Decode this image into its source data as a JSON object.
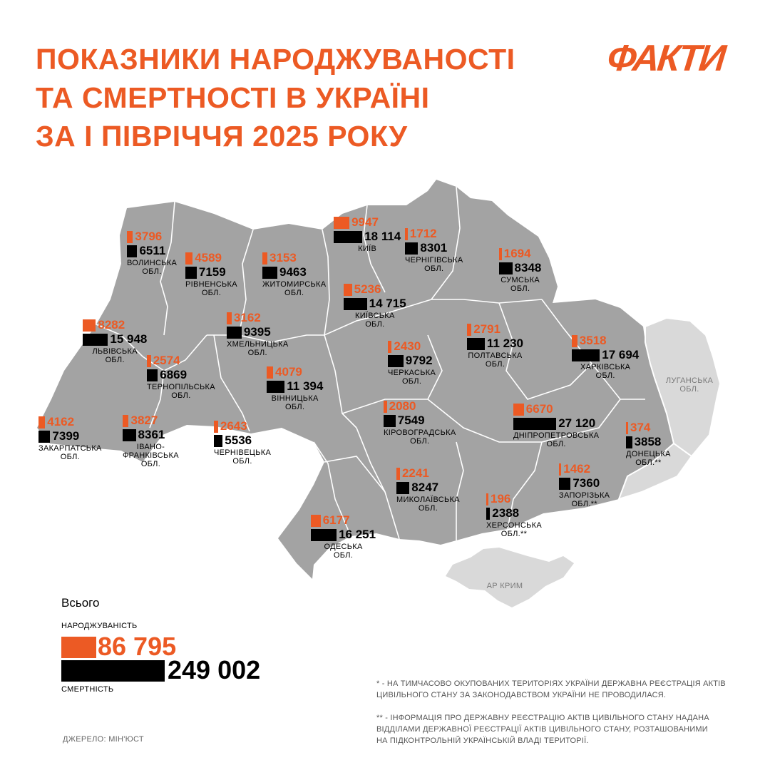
{
  "title": {
    "lines": [
      "ПОКАЗНИКИ НАРОДЖУВАНОСТІ",
      "ТА СМЕРТНОСТІ В УКРАЇНІ",
      "ЗА І ПІВРІЧЧЯ 2025 РОКУ"
    ]
  },
  "brand": {
    "logo_text": "ФАКТИ"
  },
  "colors": {
    "accent": "#ec5a24",
    "map_land": "#a3a3a3",
    "map_occupied": "#d9d9d9",
    "map_border": "#ffffff"
  },
  "map": {
    "occupied_labels": {
      "luhansk": [
        "ЛУГАНСЬКА",
        "ОБЛ."
      ],
      "crimea": [
        "АР КРИМ"
      ]
    }
  },
  "regions": [
    {
      "id": "volynska",
      "label": [
        "ВОЛИНСЬКА",
        "ОБЛ."
      ],
      "births": "3796",
      "deaths": "6511"
    },
    {
      "id": "rivnenska",
      "label": [
        "РІВНЕНСЬКА",
        "ОБЛ."
      ],
      "births": "4589",
      "deaths": "7159"
    },
    {
      "id": "zhytomyrska",
      "label": [
        "ЖИТОМИРСЬКА",
        "ОБЛ."
      ],
      "births": "3153",
      "deaths": "9463"
    },
    {
      "id": "kyiv",
      "label": [
        "КИЇВ"
      ],
      "births": "9947",
      "deaths": "18 114"
    },
    {
      "id": "chernihivska",
      "label": [
        "ЧЕРНІГІВСЬКА",
        "ОБЛ."
      ],
      "births": "1712",
      "deaths": "8301"
    },
    {
      "id": "sumska",
      "label": [
        "СУМСЬКА",
        "ОБЛ."
      ],
      "births": "1694",
      "deaths": "8348"
    },
    {
      "id": "kyivska",
      "label": [
        "КИЇВСЬКА",
        "ОБЛ."
      ],
      "births": "5236",
      "deaths": "14 715"
    },
    {
      "id": "lvivska",
      "label": [
        "ЛЬВІВСЬКА",
        "ОБЛ."
      ],
      "births": "8282",
      "deaths": "15 948"
    },
    {
      "id": "khmelnytska",
      "label": [
        "ХМЕЛЬНИЦЬКА",
        "ОБЛ."
      ],
      "births": "3162",
      "deaths": "9395"
    },
    {
      "id": "poltavska",
      "label": [
        "ПОЛТАВСЬКА",
        "ОБЛ."
      ],
      "births": "2791",
      "deaths": "11 230"
    },
    {
      "id": "kharkivska",
      "label": [
        "ХАРКІВСЬКА",
        "ОБЛ."
      ],
      "births": "3518",
      "deaths": "17 694"
    },
    {
      "id": "cherkaska",
      "label": [
        "ЧЕРКАСЬКА",
        "ОБЛ."
      ],
      "births": "2430",
      "deaths": "9792"
    },
    {
      "id": "ternopilska",
      "label": [
        "ТЕРНОПІЛЬСЬКА",
        "ОБЛ."
      ],
      "births": "2574",
      "deaths": "6869"
    },
    {
      "id": "vinnytska",
      "label": [
        "ВІННИЦЬКА",
        "ОБЛ."
      ],
      "births": "4079",
      "deaths": "11 394"
    },
    {
      "id": "kirovohradska",
      "label": [
        "КІРОВОГРАДСЬКА",
        "ОБЛ."
      ],
      "births": "2080",
      "deaths": "7549"
    },
    {
      "id": "dnipropetrovska",
      "label": [
        "ДНІПРОПЕТРОВСЬКА",
        "ОБЛ."
      ],
      "births": "6670",
      "deaths": "27 120"
    },
    {
      "id": "zakarpatska",
      "label": [
        "ЗАКАРПАТСЬКА",
        "ОБЛ."
      ],
      "births": "4162",
      "deaths": "7399"
    },
    {
      "id": "ivano-frankivska",
      "label": [
        "ІВАНО-",
        "ФРАНКІВСЬКА",
        "ОБЛ."
      ],
      "births": "3827",
      "deaths": "8361"
    },
    {
      "id": "chernivetska",
      "label": [
        "ЧЕРНІВЕЦЬКА",
        "ОБЛ."
      ],
      "births": "2643",
      "deaths": "5536"
    },
    {
      "id": "donetska",
      "label": [
        "ДОНЕЦЬКА",
        "ОБЛ.**"
      ],
      "births": "374",
      "deaths": "3858"
    },
    {
      "id": "mykolaivska",
      "label": [
        "МИКОЛАЇВСЬКА",
        "ОБЛ."
      ],
      "births": "2241",
      "deaths": "8247"
    },
    {
      "id": "zaporizka",
      "label": [
        "ЗАПОРІЗЬКА",
        "ОБЛ.**"
      ],
      "births": "1462",
      "deaths": "7360"
    },
    {
      "id": "khersonska",
      "label": [
        "ХЕРСОНСЬКА",
        "ОБЛ.**"
      ],
      "births": "196",
      "deaths": "2388"
    },
    {
      "id": "odeska",
      "label": [
        "ОДЕСЬКА",
        "ОБЛ."
      ],
      "births": "6177",
      "deaths": "16 251"
    }
  ],
  "totals": {
    "heading": "Всього",
    "births_label": "НАРОДЖУВАНІСТЬ",
    "births": "86 795",
    "deaths_label": "СМЕРТНІСТЬ",
    "deaths": "249 002"
  },
  "notes": {
    "note1": [
      "* - НА ТИМЧАСОВО ОКУПОВАНИХ ТЕРИТОРІЯХ УКРАЇНИ ДЕРЖАВНА РЕЄСТРАЦІЯ АКТІВ",
      "ЦИВІЛЬНОГО СТАНУ ЗА ЗАКОНОДАВСТВОМ УКРАЇНИ НЕ ПРОВОДИЛАСЯ."
    ],
    "note2": [
      "** - ІНФОРМАЦІЯ ПРО ДЕРЖАВНУ РЕЄСТРАЦІЮ АКТІВ ЦИВІЛЬНОГО СТАНУ НАДАНА",
      "ВІДДІЛАМИ ДЕРЖАВНОЇ РЕЄСТРАЦІЇ АКТІВ ЦИВІЛЬНОГО СТАНУ, РОЗТАШОВАНИМИ",
      "НА ПІДКОНТРОЛЬНІЙ УКРАЇНСЬКІЙ ВЛАДІ ТЕРИТОРІЇ."
    ],
    "source": "ДЖЕРЕЛО: МІН'ЮСТ"
  }
}
